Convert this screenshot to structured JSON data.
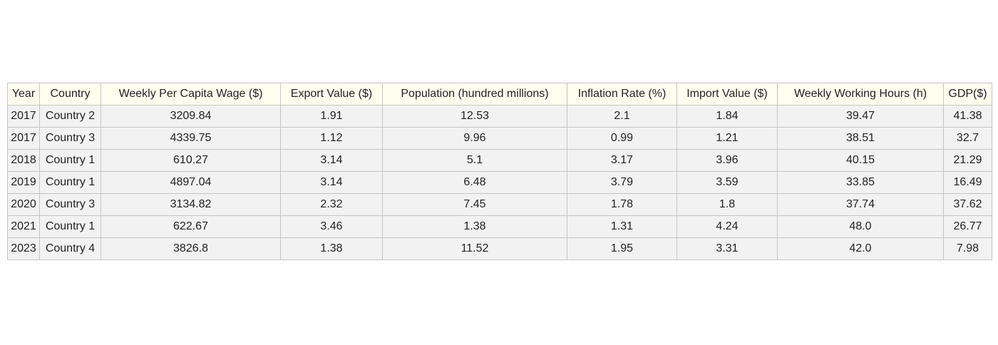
{
  "chart_data": {
    "type": "table",
    "columns": [
      "Year",
      "Country",
      "Weekly Per Capita Wage ($)",
      "Export Value ($)",
      "Population (hundred millions)",
      "Inflation Rate (%)",
      "Import Value ($)",
      "Weekly Working Hours (h)",
      "GDP($)"
    ],
    "rows": [
      [
        "2017",
        "Country 2",
        "3209.84",
        "1.91",
        "12.53",
        "2.1",
        "1.84",
        "39.47",
        "41.38"
      ],
      [
        "2017",
        "Country 3",
        "4339.75",
        "1.12",
        "9.96",
        "0.99",
        "1.21",
        "38.51",
        "32.7"
      ],
      [
        "2018",
        "Country 1",
        "610.27",
        "3.14",
        "5.1",
        "3.17",
        "3.96",
        "40.15",
        "21.29"
      ],
      [
        "2019",
        "Country 1",
        "4897.04",
        "3.14",
        "6.48",
        "3.79",
        "3.59",
        "33.85",
        "16.49"
      ],
      [
        "2020",
        "Country 3",
        "3134.82",
        "2.32",
        "7.45",
        "1.78",
        "1.8",
        "37.74",
        "37.62"
      ],
      [
        "2021",
        "Country 1",
        "622.67",
        "3.46",
        "1.38",
        "1.31",
        "4.24",
        "48.0",
        "26.77"
      ],
      [
        "2023",
        "Country 4",
        "3826.8",
        "1.38",
        "11.52",
        "1.95",
        "3.31",
        "42.0",
        "7.98"
      ]
    ],
    "header_color": "#fffff0",
    "cell_color": "#f2f2f2",
    "border_color": "#c4c4c4"
  }
}
